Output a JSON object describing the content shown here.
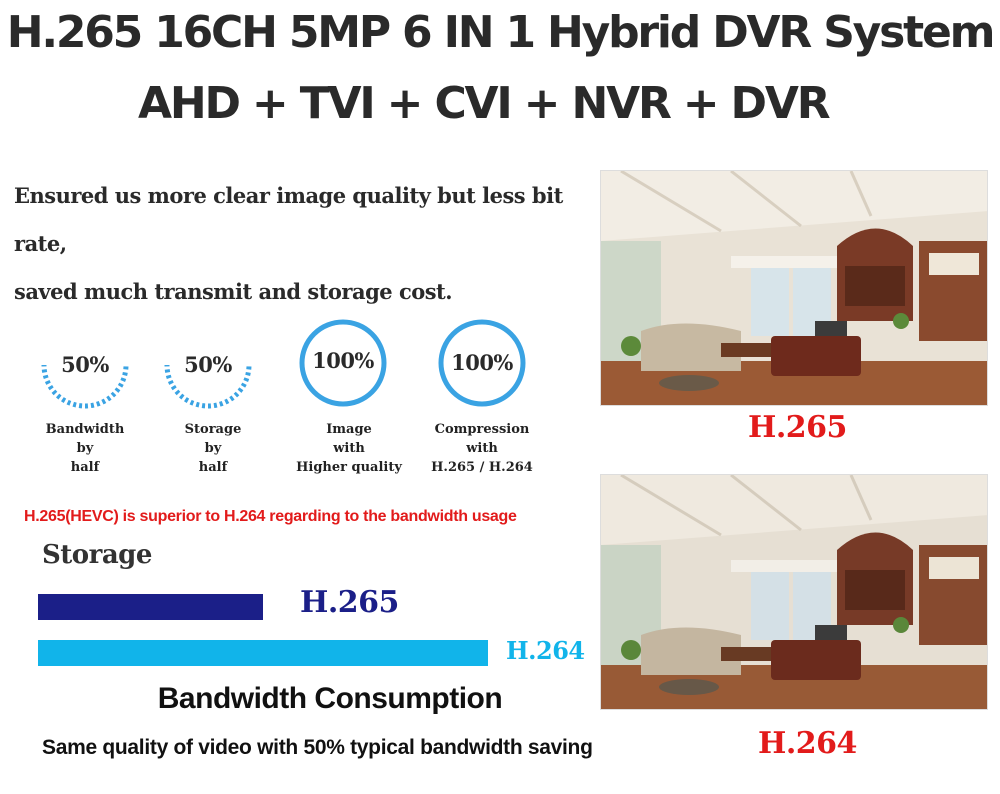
{
  "header": {
    "title_line1": "H.265 16CH 5MP 6 IN 1 Hybrid DVR System",
    "title_line2": "AHD + TVI + CVI + NVR + DVR"
  },
  "intro": {
    "line1": "Ensured us more clear image quality but less bit rate,",
    "line2": "saved much transmit and storage cost."
  },
  "stats": [
    {
      "value": "50%",
      "percent": 50,
      "caption": [
        "Bandwidth",
        "by",
        "half"
      ]
    },
    {
      "value": "50%",
      "percent": 50,
      "caption": [
        "Storage",
        "by",
        "half"
      ]
    },
    {
      "value": "100%",
      "percent": 100,
      "caption": [
        "Image",
        "with",
        "Higher quality"
      ]
    },
    {
      "value": "100%",
      "percent": 100,
      "caption": [
        "Compression",
        "with",
        "H.265 / H.264"
      ]
    }
  ],
  "comparison": {
    "note": "H.265(HEVC) is superior to H.264 regarding to the bandwidth usage",
    "storage_label": "Storage",
    "bars": [
      {
        "label": "H.265",
        "relative_size": 0.5,
        "color": "#1b1f88"
      },
      {
        "label": "H.264",
        "relative_size": 1.0,
        "color": "#11b4ea"
      }
    ],
    "bandwidth_title": "Bandwidth Consumption",
    "bandwidth_subtitle": "Same quality of video with 50% typical bandwidth saving"
  },
  "photos": [
    {
      "caption": "H.265",
      "icon": "living-room-photo"
    },
    {
      "caption": "H.264",
      "icon": "living-room-photo"
    }
  ],
  "colors": {
    "accent_red": "#e21b1b",
    "ring_blue": "#3aa3e3",
    "h265_navy": "#1b1f88",
    "h264_cyan": "#11b4ea"
  }
}
